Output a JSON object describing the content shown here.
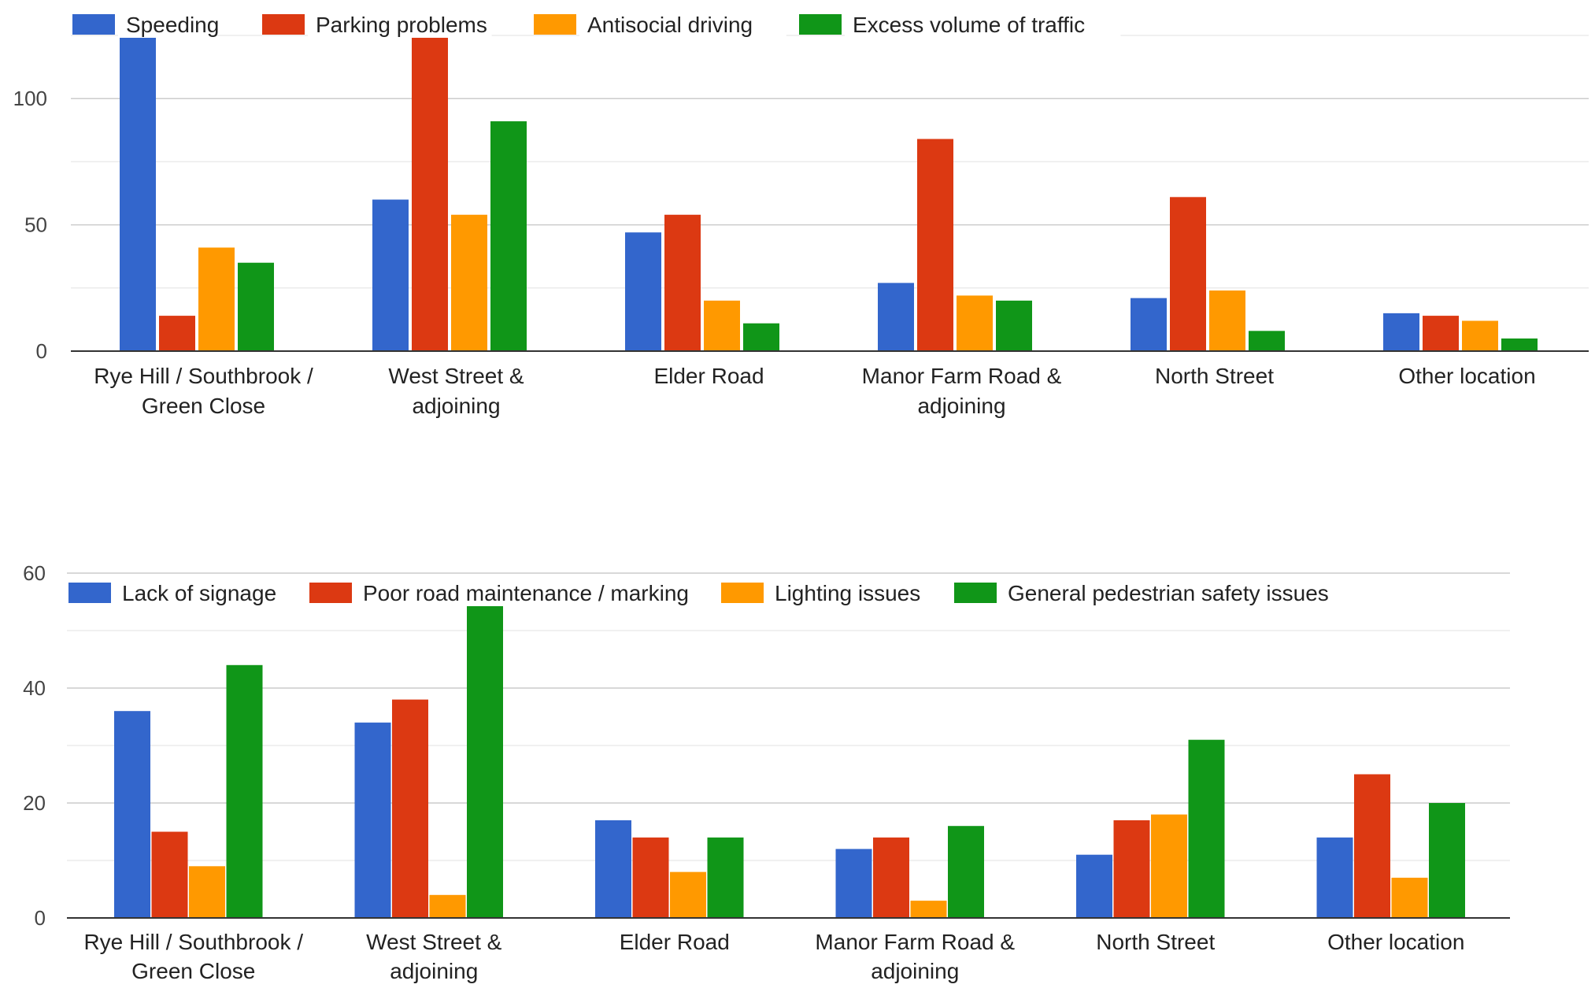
{
  "chart_data": [
    {
      "type": "bar",
      "categories": [
        [
          "Rye Hill / Southbrook /",
          "Green Close"
        ],
        [
          "West Street &",
          "adjoining"
        ],
        [
          "Elder Road"
        ],
        [
          "Manor Farm Road &",
          "adjoining"
        ],
        [
          "North Street"
        ],
        [
          "Other location"
        ]
      ],
      "series": [
        {
          "name": "Speeding",
          "color": "#3366cc",
          "values": [
            125,
            60,
            47,
            27,
            21,
            15
          ]
        },
        {
          "name": "Parking problems",
          "color": "#dc3912",
          "values": [
            14,
            125,
            54,
            84,
            61,
            14
          ]
        },
        {
          "name": "Antisocial driving",
          "color": "#ff9900",
          "values": [
            41,
            54,
            20,
            22,
            24,
            12
          ]
        },
        {
          "name": "Excess volume of traffic",
          "color": "#109618",
          "values": [
            35,
            91,
            11,
            20,
            8,
            5
          ]
        }
      ],
      "ylim": [
        0,
        125
      ],
      "yticks": [
        0,
        50,
        100
      ],
      "grid": true,
      "legend": "top-left"
    },
    {
      "type": "bar",
      "categories": [
        [
          "Rye Hill / Southbrook /",
          "Green Close"
        ],
        [
          "West Street &",
          "adjoining"
        ],
        [
          "Elder Road"
        ],
        [
          "Manor Farm Road &",
          "adjoining"
        ],
        [
          "North Street"
        ],
        [
          "Other location"
        ]
      ],
      "series": [
        {
          "name": "Lack of signage",
          "color": "#3366cc",
          "values": [
            36,
            34,
            17,
            12,
            11,
            14
          ]
        },
        {
          "name": "Poor road maintenance / marking",
          "color": "#dc3912",
          "values": [
            15,
            38,
            14,
            14,
            17,
            25
          ]
        },
        {
          "name": "Lighting issues",
          "color": "#ff9900",
          "values": [
            9,
            4,
            8,
            3,
            18,
            7
          ]
        },
        {
          "name": "General pedestrian safety issues",
          "color": "#109618",
          "values": [
            44,
            55,
            14,
            16,
            31,
            20
          ]
        }
      ],
      "ylim": [
        0,
        60
      ],
      "yticks": [
        0,
        20,
        40,
        60
      ],
      "grid": true,
      "legend": "top-left"
    }
  ]
}
